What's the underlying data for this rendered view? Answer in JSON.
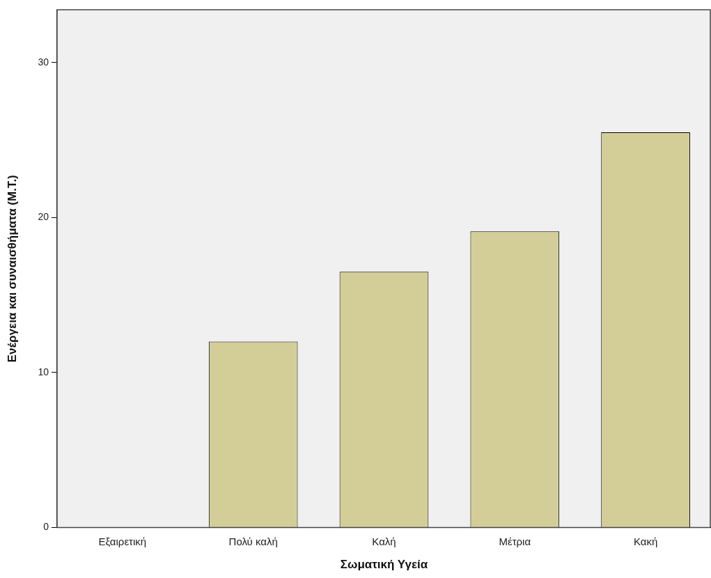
{
  "chart_data": {
    "type": "bar",
    "xlabel": "Σωματική Υγεία",
    "ylabel": "Ενέργεια και συναισθήματα (Μ.Τ.)",
    "categories": [
      "Εξαιρετική",
      "Πολύ καλή",
      "Καλή",
      "Μέτρια",
      "Κακή"
    ],
    "values": [
      null,
      12.0,
      16.5,
      19.1,
      25.5
    ],
    "color": "#d3ce97",
    "ylim": [
      0,
      33.4
    ],
    "yticks": [
      0,
      10,
      20,
      30
    ],
    "grid": false,
    "legend": false
  }
}
